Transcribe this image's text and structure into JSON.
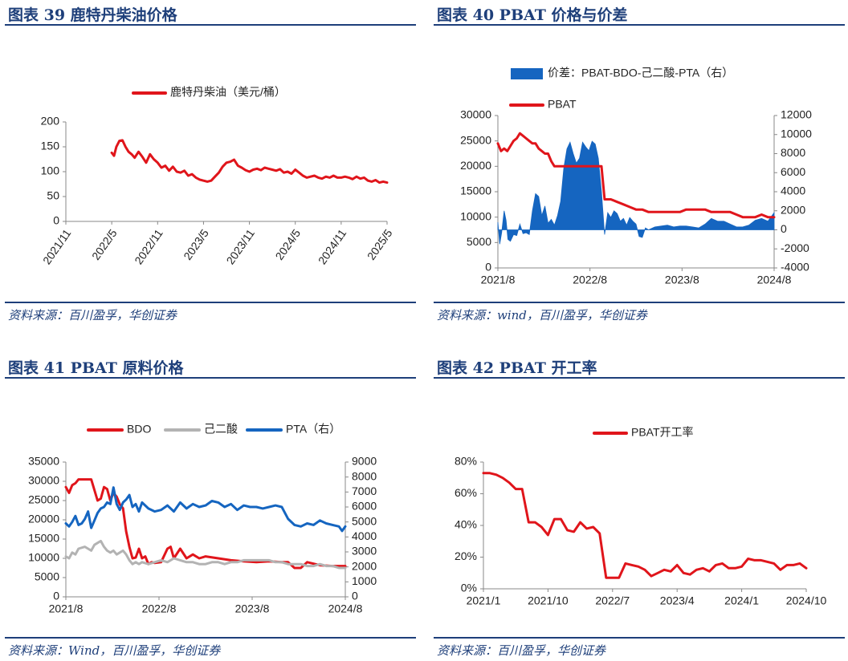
{
  "panels": {
    "p39": {
      "title": "图表 39  鹿特丹柴油价格",
      "source": "资料来源：百川盈孚，华创证券"
    },
    "p40": {
      "title": "图表 40  PBAT 价格与价差",
      "source": "资料来源：wind，百川盈孚，华创证券"
    },
    "p41": {
      "title": "图表 41  PBAT 原料价格",
      "source": "资料来源：Wind，百川盈孚，华创证券"
    },
    "p42": {
      "title": "图表 42  PBAT 开工率",
      "source": "资料来源：百川盈孚，华创证券"
    }
  },
  "colors": {
    "red": "#e0151b",
    "blue": "#1565c0",
    "gray": "#b3b3b3",
    "navy": "#1e3f7a"
  },
  "chart_data": [
    {
      "id": "c39",
      "type": "line",
      "title": "鹿特丹柴油价格",
      "ylim": [
        0,
        200
      ],
      "yticks": [
        "0",
        "50",
        "100",
        "150",
        "200"
      ],
      "xticks": [
        "2021/11",
        "2022/5",
        "2022/11",
        "2023/5",
        "2023/11",
        "2024/5",
        "2024/11",
        "2025/5"
      ],
      "xlim_index": [
        0,
        42
      ],
      "series": [
        {
          "name": "鹿特丹柴油（美元/桶）",
          "color": "#e0151b",
          "x": [
            6,
            6.3,
            6.6,
            7,
            7.4,
            7.8,
            8.2,
            8.6,
            9,
            9.5,
            10,
            10.5,
            11,
            11.5,
            12,
            12.5,
            13,
            13.5,
            14,
            14.5,
            15,
            15.5,
            16,
            16.5,
            17,
            17.5,
            18,
            18.5,
            19,
            19.5,
            20,
            20.5,
            21,
            21.5,
            22,
            22.5,
            23,
            23.5,
            24,
            24.5,
            25,
            25.5,
            26,
            26.5,
            27,
            27.5,
            28,
            28.5,
            29,
            29.5,
            30,
            30.5,
            31,
            31.5,
            32,
            32.5,
            33,
            33.5,
            34,
            34.5,
            35,
            35.5,
            36,
            36.5,
            37,
            37.5,
            38,
            38.5,
            39,
            39.5,
            40,
            40.5,
            41,
            41.5,
            42
          ],
          "y": [
            138,
            132,
            150,
            162,
            163,
            150,
            140,
            135,
            128,
            140,
            130,
            118,
            135,
            125,
            118,
            108,
            112,
            102,
            110,
            100,
            98,
            102,
            92,
            95,
            88,
            84,
            82,
            80,
            82,
            90,
            98,
            110,
            118,
            120,
            124,
            112,
            108,
            103,
            100,
            104,
            106,
            103,
            108,
            106,
            104,
            102,
            105,
            98,
            100,
            96,
            104,
            98,
            92,
            88,
            90,
            92,
            88,
            86,
            90,
            88,
            92,
            88,
            88,
            90,
            88,
            85,
            90,
            86,
            88,
            82,
            80,
            83,
            78,
            80,
            78
          ]
        }
      ]
    },
    {
      "id": "c40",
      "type": "line",
      "title": "PBAT价格与价差",
      "ylim": [
        0,
        30000
      ],
      "yticks": [
        "0",
        "5000",
        "10000",
        "15000",
        "20000",
        "25000",
        "30000"
      ],
      "y2lim": [
        -4000,
        12000
      ],
      "y2ticks": [
        "-4000",
        "-2000",
        "0",
        "2000",
        "4000",
        "6000",
        "8000",
        "10000",
        "12000"
      ],
      "xticks": [
        "2021/8",
        "2022/8",
        "2023/8",
        "2024/8"
      ],
      "xlim_index": [
        0,
        44
      ],
      "series": [
        {
          "name": "价差：PBAT-BDO-己二酸-PTA（右）",
          "color": "#1565c0",
          "axis": "right",
          "style": "area",
          "x": [
            0,
            0.3,
            0.6,
            1,
            1.3,
            1.6,
            2,
            2.5,
            3,
            3.5,
            4,
            4.5,
            5,
            5.5,
            6,
            6.5,
            7,
            7.5,
            8,
            8.5,
            9,
            9.5,
            10,
            10.5,
            11,
            11.5,
            12,
            12.5,
            13,
            13.5,
            14,
            14.5,
            15,
            15.5,
            16,
            16.5,
            17,
            17.5,
            18,
            18.5,
            19,
            19.5,
            20,
            20.5,
            21,
            21.5,
            22,
            22.5,
            23,
            23.5,
            24,
            25,
            26,
            27,
            28,
            29,
            30,
            31,
            32,
            33,
            34,
            35,
            36,
            37,
            38,
            39,
            40,
            41,
            42,
            43,
            44
          ],
          "y": [
            800,
            -1500,
            -300,
            2000,
            1000,
            -1000,
            -1200,
            -500,
            -600,
            600,
            -400,
            -300,
            -500,
            2000,
            3800,
            3500,
            1500,
            2500,
            700,
            1100,
            500,
            1500,
            3000,
            6500,
            8500,
            9200,
            8000,
            7000,
            7500,
            9200,
            8700,
            8300,
            9300,
            9000,
            7500,
            4000,
            -500,
            1800,
            1300,
            2000,
            1700,
            900,
            1200,
            500,
            1300,
            900,
            600,
            -700,
            -800,
            200,
            0,
            300,
            400,
            500,
            300,
            400,
            400,
            300,
            200,
            600,
            1200,
            900,
            900,
            600,
            300,
            300,
            500,
            1000,
            1200,
            900,
            1800
          ]
        },
        {
          "name": "PBAT",
          "color": "#e0151b",
          "axis": "left",
          "style": "line",
          "x": [
            0,
            0.5,
            1,
            1.5,
            2,
            2.5,
            3,
            3.5,
            4,
            4.5,
            5,
            5.5,
            6,
            6.5,
            7,
            7.5,
            8,
            8.5,
            9,
            9.5,
            10,
            10.5,
            11,
            12,
            13,
            14,
            15,
            16,
            16.5,
            17,
            18,
            19,
            20,
            21,
            22,
            23,
            24,
            25,
            26,
            27,
            28,
            29,
            30,
            31,
            32,
            33,
            34,
            35,
            36,
            37,
            38,
            39,
            40,
            41,
            42,
            43,
            44
          ],
          "y": [
            24500,
            23000,
            23500,
            23000,
            24000,
            25000,
            25500,
            26500,
            26000,
            25500,
            25000,
            24500,
            24500,
            23500,
            23000,
            22500,
            22500,
            21000,
            20000,
            20000,
            20000,
            20000,
            20000,
            20000,
            20000,
            20000,
            20000,
            20000,
            20000,
            13500,
            13500,
            13000,
            12500,
            12000,
            11500,
            11500,
            11000,
            11000,
            11000,
            11000,
            11000,
            11000,
            11500,
            11500,
            11500,
            11500,
            11000,
            11000,
            11000,
            11000,
            10500,
            10000,
            10000,
            10000,
            10500,
            10000,
            10000
          ]
        }
      ]
    },
    {
      "id": "c41",
      "type": "line",
      "title": "PBAT原料价格",
      "ylim": [
        0,
        35000
      ],
      "yticks": [
        "0",
        "5000",
        "10000",
        "15000",
        "20000",
        "25000",
        "30000",
        "35000"
      ],
      "y2lim": [
        0,
        9000
      ],
      "y2ticks": [
        "0",
        "1000",
        "2000",
        "3000",
        "4000",
        "5000",
        "6000",
        "7000",
        "8000",
        "9000"
      ],
      "xticks": [
        "2021/8",
        "2022/8",
        "2023/8",
        "2024/8"
      ],
      "xlim_index": [
        0,
        44
      ],
      "series": [
        {
          "name": "BDO",
          "color": "#e0151b",
          "axis": "left",
          "x": [
            0,
            0.5,
            1,
            1.5,
            2,
            3,
            4,
            5,
            5.5,
            6,
            6.5,
            7,
            7.5,
            8,
            8.5,
            9,
            9.5,
            10,
            10.5,
            11,
            11.5,
            12,
            12.5,
            13,
            13.5,
            14,
            15,
            16,
            16.5,
            17,
            18,
            19,
            20,
            21,
            22,
            24,
            26,
            28,
            30,
            32,
            34,
            35,
            36,
            37,
            38,
            40,
            42,
            44
          ],
          "y": [
            28500,
            27000,
            29000,
            29500,
            30500,
            30500,
            30500,
            25000,
            25500,
            28500,
            28000,
            25000,
            27000,
            26000,
            24000,
            23000,
            17000,
            13000,
            10000,
            10200,
            12500,
            10000,
            10500,
            8500,
            9000,
            8800,
            9000,
            12500,
            13000,
            10000,
            12500,
            10000,
            11000,
            10000,
            10500,
            10000,
            9500,
            9200,
            9000,
            9200,
            9000,
            9000,
            7500,
            7500,
            9000,
            8200,
            8000,
            8000
          ]
        },
        {
          "name": "己二酸",
          "color": "#b3b3b3",
          "axis": "left",
          "x": [
            0,
            0.5,
            1,
            1.5,
            2,
            3,
            4,
            4.5,
            5,
            5.5,
            6,
            6.5,
            7,
            7.5,
            8,
            8.5,
            9,
            9.5,
            10,
            10.5,
            11,
            11.5,
            12,
            13,
            14,
            15,
            16,
            17,
            18,
            19,
            20,
            21,
            22,
            23,
            24,
            25,
            26,
            27,
            28,
            29,
            30,
            31,
            32,
            33,
            34,
            35,
            36,
            37,
            38,
            39,
            40,
            41,
            42,
            43,
            44
          ],
          "y": [
            10500,
            10000,
            11500,
            11000,
            12500,
            13000,
            12000,
            13500,
            14000,
            14500,
            13000,
            12000,
            11500,
            12000,
            11000,
            11500,
            12000,
            11000,
            9500,
            8500,
            9000,
            8500,
            9000,
            8500,
            9000,
            9500,
            9000,
            10000,
            9500,
            9000,
            9000,
            8500,
            8500,
            9000,
            9000,
            8500,
            9000,
            9000,
            9500,
            9500,
            9500,
            9500,
            9500,
            9000,
            9000,
            8500,
            8500,
            8500,
            8000,
            8000,
            8500,
            8000,
            8000,
            7500,
            7500
          ]
        },
        {
          "name": "PTA（右）",
          "color": "#1565c0",
          "axis": "right",
          "x": [
            0,
            0.5,
            1,
            1.5,
            2,
            2.5,
            3,
            3.5,
            4,
            4.5,
            5,
            5.5,
            6,
            6.5,
            7,
            7.5,
            8,
            8.5,
            9,
            9.5,
            10,
            10.5,
            11,
            11.5,
            12,
            13,
            14,
            15,
            16,
            17,
            18,
            19,
            20,
            21,
            22,
            23,
            24,
            25,
            26,
            27,
            28,
            29,
            30,
            31,
            32,
            33,
            34,
            35,
            36,
            37,
            38,
            39,
            40,
            41,
            42,
            43,
            43.5,
            44
          ],
          "y": [
            4900,
            4700,
            5000,
            5400,
            4800,
            4900,
            5200,
            5700,
            4600,
            5100,
            5600,
            5900,
            6000,
            6300,
            6200,
            7300,
            6200,
            5800,
            6300,
            6500,
            6800,
            6000,
            6200,
            5700,
            6300,
            5900,
            5700,
            5800,
            6100,
            5700,
            6300,
            5900,
            6200,
            6000,
            6100,
            6400,
            6300,
            6000,
            6200,
            5800,
            6100,
            6000,
            6000,
            5900,
            6000,
            6100,
            6000,
            5200,
            4800,
            4700,
            4900,
            4800,
            5100,
            4900,
            4800,
            4700,
            4400,
            4700
          ]
        }
      ]
    },
    {
      "id": "c42",
      "type": "line",
      "title": "PBAT开工率",
      "ylim": [
        0,
        80
      ],
      "yticks": [
        "0%",
        "20%",
        "40%",
        "60%",
        "80%"
      ],
      "xticks": [
        "2021/1",
        "2021/10",
        "2022/7",
        "2023/4",
        "2024/1",
        "2024/10"
      ],
      "xlim_index": [
        0,
        50
      ],
      "series": [
        {
          "name": "PBAT开工率",
          "color": "#e0151b",
          "x": [
            0,
            1,
            2,
            3,
            4,
            5,
            6,
            7,
            8,
            9,
            10,
            11,
            12,
            13,
            14,
            15,
            16,
            17,
            18,
            19,
            20,
            21,
            22,
            23,
            24,
            25,
            26,
            27,
            28,
            29,
            30,
            31,
            32,
            33,
            34,
            35,
            36,
            37,
            38,
            39,
            40,
            41,
            42,
            43,
            44,
            45,
            46,
            47,
            48,
            49,
            50
          ],
          "y": [
            73,
            73,
            72,
            70,
            67,
            63,
            63,
            42,
            42,
            39,
            34,
            44,
            44,
            37,
            36,
            42,
            38,
            39,
            35,
            7,
            7,
            7,
            16,
            15,
            14,
            12,
            8,
            10,
            12,
            11,
            15,
            10,
            9,
            12,
            13,
            11,
            15,
            16,
            13,
            13,
            14,
            19,
            18,
            18,
            17,
            16,
            12,
            15,
            15,
            16,
            13
          ]
        }
      ]
    }
  ]
}
